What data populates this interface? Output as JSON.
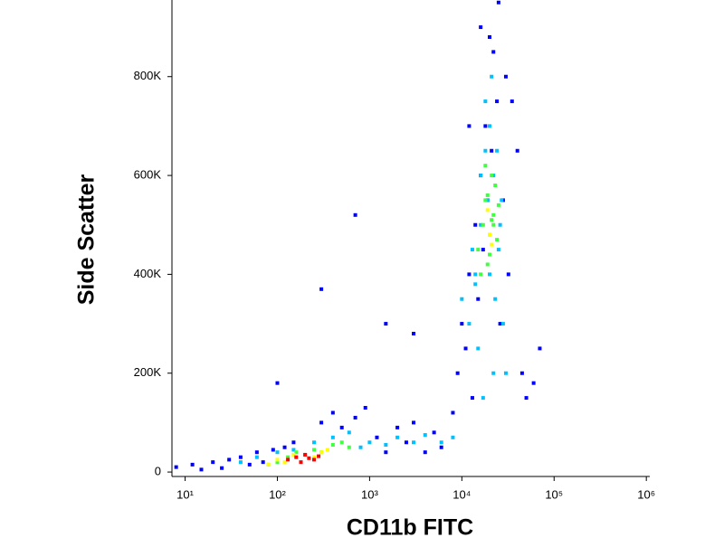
{
  "chart_data": {
    "type": "scatter",
    "x_label": "CD11b FITC",
    "y_label": "Side Scatter",
    "xscale": "log",
    "xlim": [
      7.2,
      1090000
    ],
    "ylim": [
      -9000,
      955000
    ],
    "xticks": [
      {
        "value": 10,
        "label": "10¹"
      },
      {
        "value": 100,
        "label": "10²"
      },
      {
        "value": 1000,
        "label": "10³"
      },
      {
        "value": 10000,
        "label": "10⁴"
      },
      {
        "value": 100000,
        "label": "10⁵"
      },
      {
        "value": 1000000,
        "label": "10⁶"
      }
    ],
    "yticks": [
      {
        "value": 0,
        "label": "0"
      },
      {
        "value": 200000,
        "label": "200K"
      },
      {
        "value": 400000,
        "label": "400K"
      },
      {
        "value": 600000,
        "label": "600K"
      },
      {
        "value": 800000,
        "label": "800K"
      }
    ],
    "series": [
      {
        "color": "#0000ff",
        "x": [
          8,
          12,
          15,
          20,
          25,
          30,
          40,
          50,
          60,
          70,
          90,
          120,
          150,
          300,
          400,
          500,
          700,
          900,
          1200,
          1500,
          2000,
          2500,
          3000,
          4000,
          5000,
          6000,
          8000,
          9000,
          10000,
          12000,
          14000,
          16000,
          18000,
          22000,
          25000,
          30000,
          35000,
          40000,
          45000,
          50000,
          60000,
          70000,
          11000,
          13000,
          15000,
          17000,
          19000,
          21000,
          24000,
          28000,
          32000,
          26000,
          20000,
          16000,
          12000,
          300,
          700,
          1500,
          100,
          3000
        ],
        "values": [
          10000,
          15000,
          5000,
          20000,
          8000,
          25000,
          30000,
          15000,
          40000,
          20000,
          45000,
          50000,
          60000,
          100000,
          120000,
          90000,
          110000,
          130000,
          70000,
          40000,
          90000,
          60000,
          100000,
          40000,
          80000,
          50000,
          120000,
          200000,
          300000,
          400000,
          500000,
          600000,
          700000,
          850000,
          950000,
          800000,
          750000,
          650000,
          200000,
          150000,
          180000,
          250000,
          250000,
          150000,
          350000,
          450000,
          550000,
          650000,
          750000,
          550000,
          400000,
          300000,
          880000,
          900000,
          700000,
          370000,
          520000,
          300000,
          180000,
          280000
        ]
      },
      {
        "color": "#00c0ff",
        "x": [
          40,
          60,
          80,
          100,
          150,
          250,
          400,
          600,
          800,
          1000,
          1500,
          2000,
          3000,
          4000,
          6000,
          8000,
          10000,
          12000,
          14000,
          16000,
          18000,
          20000,
          22000,
          25000,
          28000,
          30000,
          15000,
          17000,
          19000,
          21000,
          23000,
          26000,
          13000,
          18000,
          24000,
          20000,
          16000,
          22000,
          27000,
          14000
        ],
        "values": [
          20000,
          30000,
          15000,
          40000,
          45000,
          60000,
          70000,
          80000,
          50000,
          60000,
          55000,
          70000,
          60000,
          75000,
          60000,
          70000,
          350000,
          300000,
          400000,
          500000,
          650000,
          700000,
          600000,
          450000,
          300000,
          200000,
          250000,
          150000,
          550000,
          800000,
          350000,
          500000,
          450000,
          750000,
          650000,
          400000,
          600000,
          200000,
          550000,
          380000
        ]
      },
      {
        "color": "#40ff40",
        "x": [
          100,
          130,
          160,
          200,
          250,
          300,
          400,
          500,
          600,
          15000,
          17000,
          18000,
          19000,
          20000,
          21000,
          22000,
          23000,
          24000,
          25000,
          16000,
          18000,
          20000,
          22000,
          19000,
          21000
        ],
        "values": [
          20000,
          30000,
          40000,
          35000,
          45000,
          40000,
          55000,
          60000,
          50000,
          450000,
          500000,
          550000,
          420000,
          480000,
          600000,
          520000,
          580000,
          470000,
          540000,
          400000,
          620000,
          440000,
          500000,
          560000,
          510000
        ]
      },
      {
        "color": "#ffff00",
        "x": [
          80,
          100,
          120,
          150,
          250,
          300,
          350,
          20000,
          19000,
          21000
        ],
        "values": [
          15000,
          25000,
          20000,
          35000,
          30000,
          40000,
          45000,
          480000,
          530000,
          460000
        ]
      },
      {
        "color": "#ff0000",
        "x": [
          130,
          160,
          180,
          200,
          220,
          250,
          280
        ],
        "values": [
          25000,
          30000,
          20000,
          35000,
          28000,
          25000,
          32000
        ]
      }
    ]
  }
}
